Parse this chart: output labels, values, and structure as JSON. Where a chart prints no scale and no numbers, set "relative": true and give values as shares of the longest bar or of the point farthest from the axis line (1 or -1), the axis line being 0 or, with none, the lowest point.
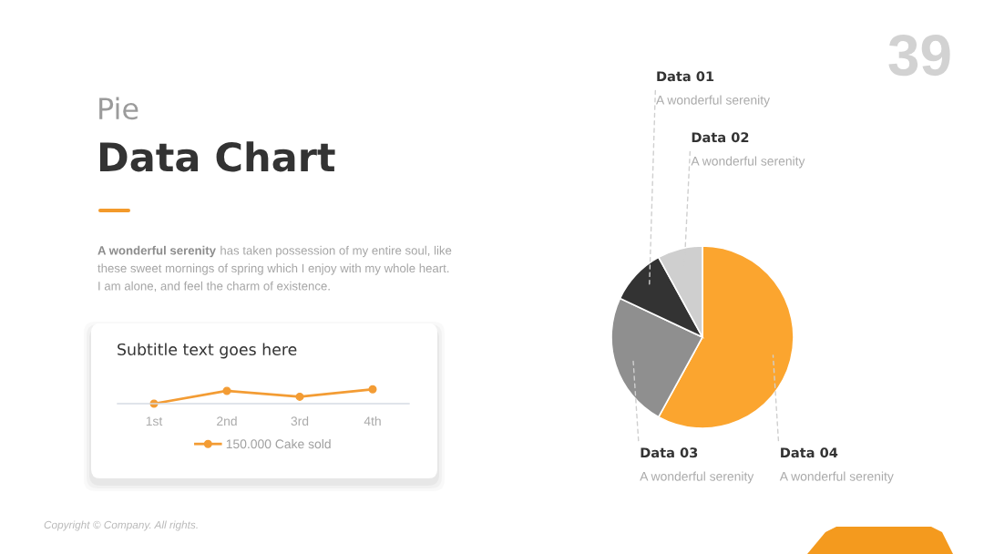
{
  "chart_data": [
    {
      "type": "pie",
      "categories": [
        "Data 04",
        "Data 03",
        "Data 01",
        "Data 02"
      ],
      "values": [
        58,
        24,
        10,
        8
      ],
      "colors": [
        "#fba52f",
        "#8f8f8f",
        "#333333",
        "#cfcfcf"
      ],
      "annotations": [
        "Pie",
        "Data Chart",
        "A wonderful serenity",
        "has taken possession of my entire soul, like",
        "these sweet mornings of spring which I enjoy with my whole heart.",
        "I am alone, and feel the charm of existence.",
        "A wonderful serenity",
        "A wonderful serenity",
        "A wonderful serenity",
        "A wonderful serenity",
        "39",
        "Copyright © Company. All rights."
      ]
    },
    {
      "type": "line",
      "title": "Subtitle text goes here",
      "categories": [
        "1st",
        "2nd",
        "3rd",
        "4th"
      ],
      "series": [
        {
          "name": "150.000 Cake sold",
          "color": "#f39c34",
          "values": [
            0,
            0.89,
            0.48,
            1
          ]
        }
      ],
      "relative": true,
      "marker": "circle",
      "legend": "bottom"
    }
  ]
}
